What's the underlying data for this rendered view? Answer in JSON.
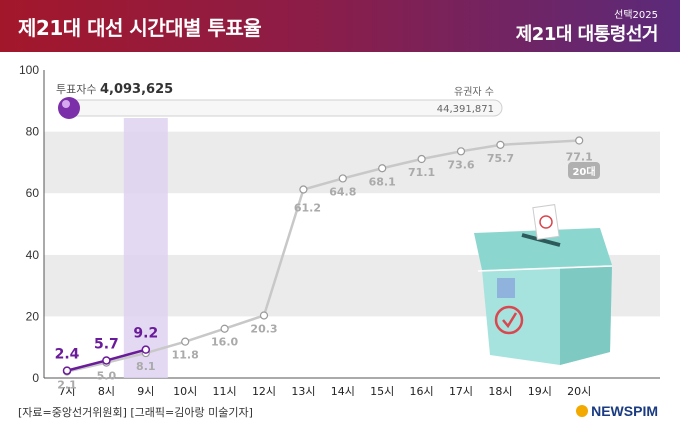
{
  "header": {
    "title": "제21대 대선 시간대별 투표율",
    "edition": "선택2025",
    "brand": "제21대 대통령선거"
  },
  "voters": {
    "label": "투표자수",
    "value": "4,093,625",
    "total_label": "유권자 수",
    "total_value": "44,391,871"
  },
  "chart_data": {
    "type": "line",
    "title": "제21대 대선 시간대별 투표율",
    "categories": [
      "7시",
      "8시",
      "9시",
      "10시",
      "11시",
      "12시",
      "13시",
      "14시",
      "15시",
      "16시",
      "17시",
      "18시",
      "19시",
      "20시"
    ],
    "ylim": [
      0,
      100
    ],
    "yticks": [
      0,
      20,
      40,
      60,
      80,
      100
    ],
    "grid": true,
    "highlight_category": "9시",
    "series": [
      {
        "values": [
          2.4,
          5.7,
          9.2,
          null,
          null,
          null,
          null,
          null,
          null,
          null,
          null,
          null,
          null,
          null
        ],
        "color": "#6a1b9a"
      },
      {
        "label": "20대",
        "values": [
          2.1,
          5.0,
          8.1,
          11.8,
          16.0,
          20.3,
          61.2,
          64.8,
          68.1,
          71.1,
          73.6,
          75.7,
          null,
          77.1
        ],
        "color": "#c8c8c8"
      }
    ]
  },
  "footer": {
    "source": "[자료=중앙선거위원회] [그래픽=김아랑 미술기자]",
    "logo": "NEWSPIM"
  }
}
